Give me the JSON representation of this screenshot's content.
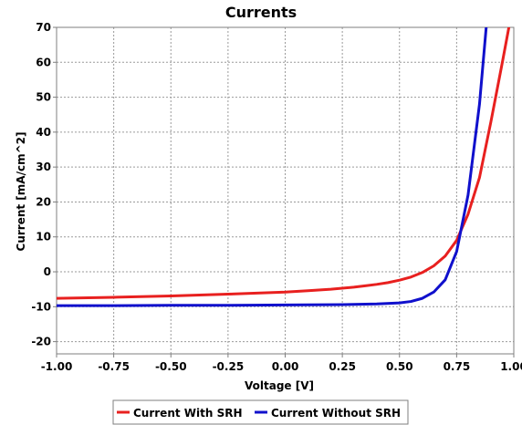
{
  "chart_data": {
    "type": "line",
    "title": "Currents",
    "xlabel": "Voltage [V]",
    "ylabel": "Current [mA/cm^2]",
    "xlim": [
      -1.0,
      1.0
    ],
    "ylim": [
      -23.5,
      70
    ],
    "grid": true,
    "legend": "bottom-center",
    "xticks": [
      -1.0,
      -0.75,
      -0.5,
      -0.25,
      0.0,
      0.25,
      0.5,
      0.75,
      1.0
    ],
    "xtick_labels": [
      "-1.00",
      "-0.75",
      "-0.50",
      "-0.25",
      "0.00",
      "0.25",
      "0.50",
      "0.75",
      "1.00"
    ],
    "yticks": [
      -20,
      -10,
      0,
      10,
      20,
      30,
      40,
      50,
      60,
      70
    ],
    "ytick_labels": [
      "-20",
      "-10",
      "0",
      "10",
      "20",
      "30",
      "40",
      "50",
      "60",
      "70"
    ],
    "series": [
      {
        "name": "Current With SRH",
        "color": "#e8201f",
        "x": [
          -1.0,
          -0.75,
          -0.5,
          -0.25,
          0.0,
          0.1,
          0.2,
          0.3,
          0.35,
          0.4,
          0.45,
          0.5,
          0.55,
          0.6,
          0.65,
          0.7,
          0.75,
          0.8,
          0.85,
          0.9,
          0.95,
          0.98
        ],
        "y": [
          -7.6,
          -7.3,
          -6.9,
          -6.4,
          -5.8,
          -5.4,
          -5.0,
          -4.4,
          -4.0,
          -3.6,
          -3.1,
          -2.4,
          -1.5,
          -0.2,
          1.7,
          4.5,
          9.0,
          16.5,
          27.0,
          43.0,
          60.0,
          70.5
        ]
      },
      {
        "name": "Current Without SRH",
        "color": "#1010cc",
        "x": [
          -1.0,
          -0.75,
          -0.5,
          -0.25,
          0.0,
          0.25,
          0.4,
          0.5,
          0.55,
          0.6,
          0.65,
          0.7,
          0.75,
          0.8,
          0.85,
          0.88
        ],
        "y": [
          -9.7,
          -9.7,
          -9.6,
          -9.6,
          -9.5,
          -9.4,
          -9.2,
          -8.9,
          -8.5,
          -7.6,
          -5.8,
          -2.3,
          5.8,
          22.0,
          48.0,
          70.5
        ]
      }
    ]
  }
}
